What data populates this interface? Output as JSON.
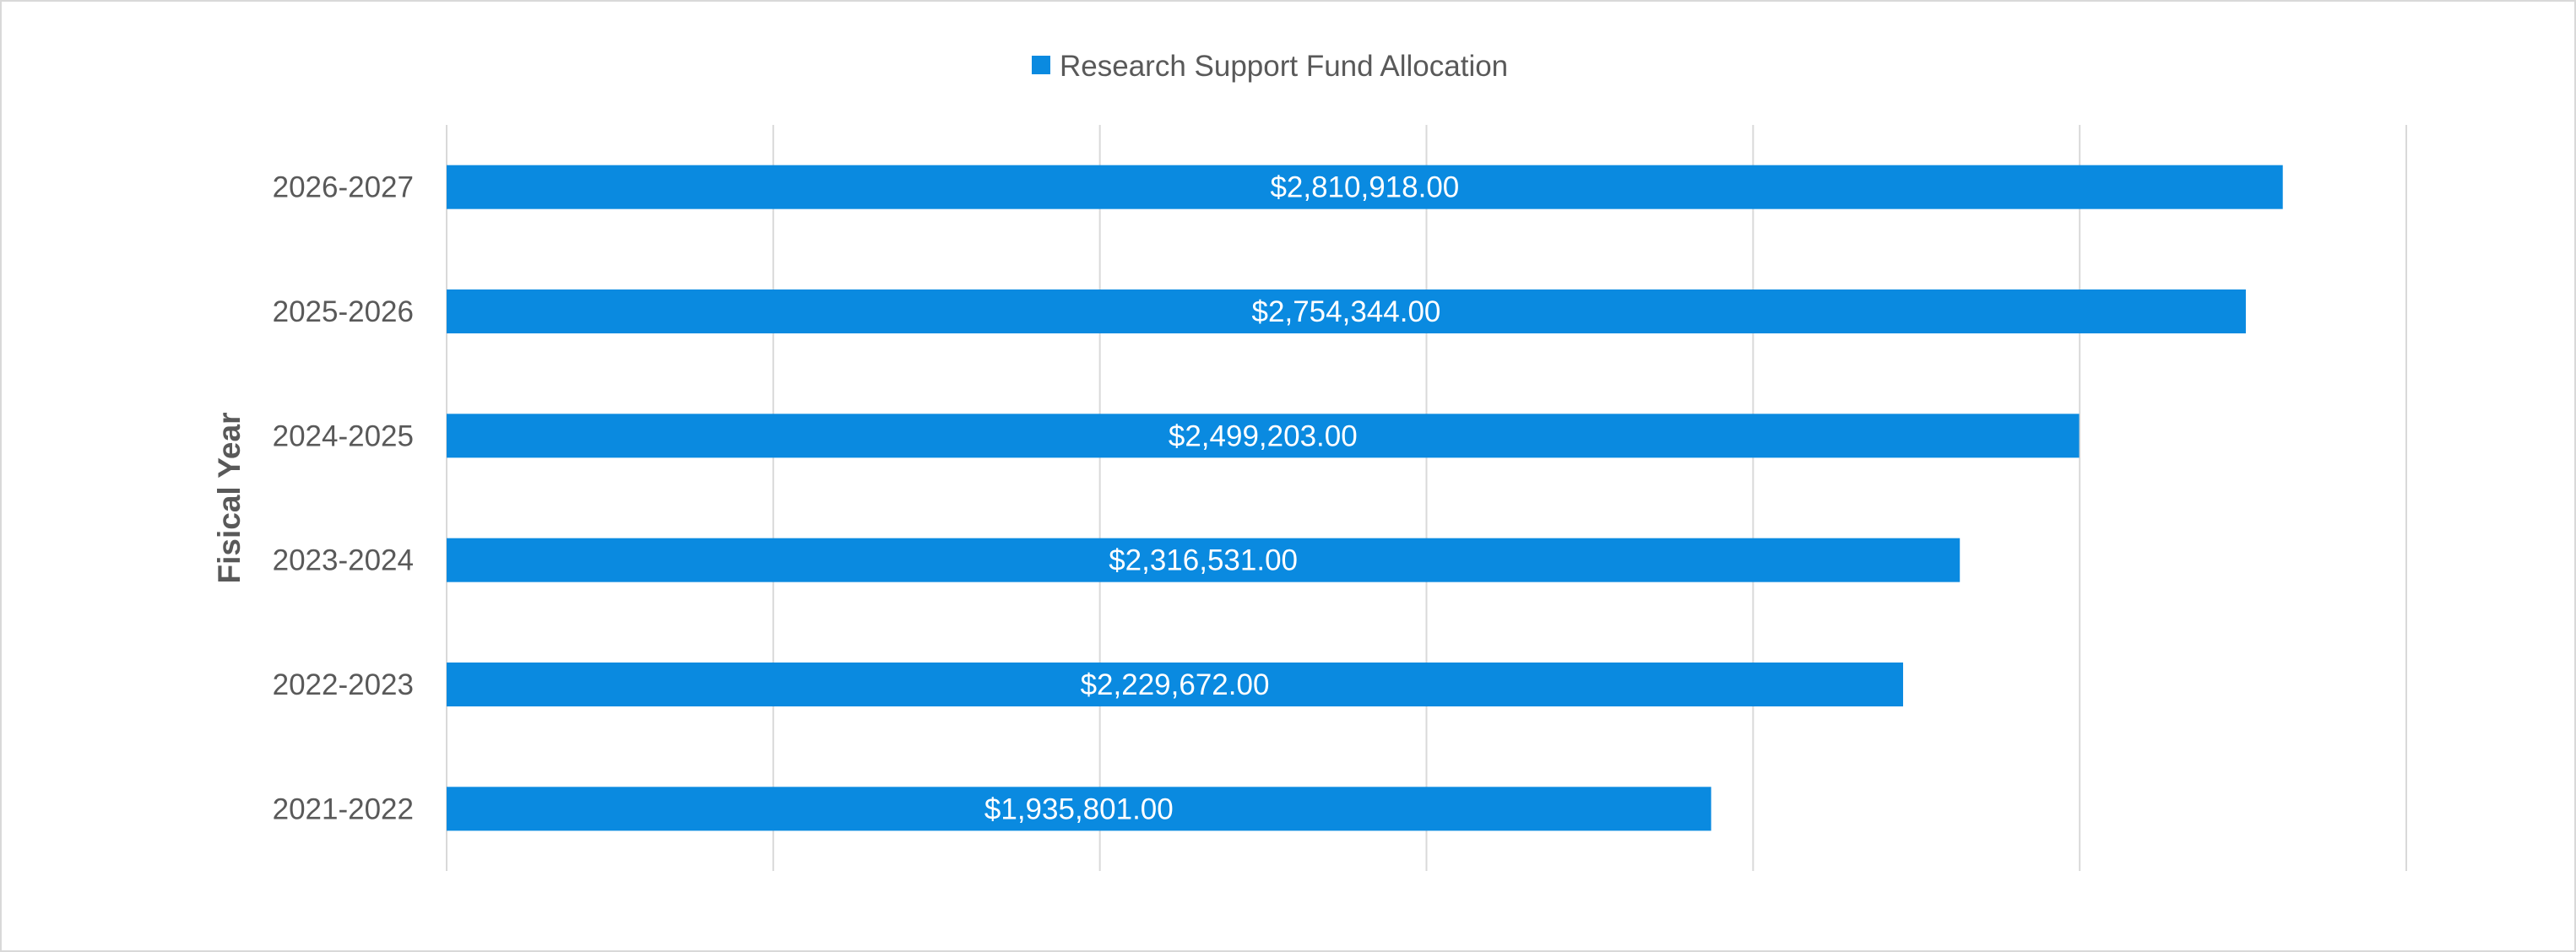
{
  "chart_data": {
    "type": "bar",
    "orientation": "horizontal",
    "categories": [
      "2021-2022",
      "2022-2023",
      "2023-2024",
      "2024-2025",
      "2025-2026",
      "2026-2027"
    ],
    "series": [
      {
        "name": "Research Support Fund Allocation",
        "values": [
          1935801,
          2229672,
          2316531,
          2499203,
          2754344,
          2810918
        ],
        "data_labels": [
          "$1,935,801.00",
          "$2,229,672.00",
          "$2,316,531.00",
          "$2,499,203.00",
          "$2,754,344.00",
          "$2,810,918.00"
        ],
        "color": "#0a8ae0"
      }
    ],
    "ylabel": "Fisical Year",
    "xlabel": "",
    "xlim": [
      0,
      3000000
    ],
    "x_gridline_step": 500000,
    "x_tick_labels_shown": false,
    "grid": true,
    "legend_position": "top"
  }
}
